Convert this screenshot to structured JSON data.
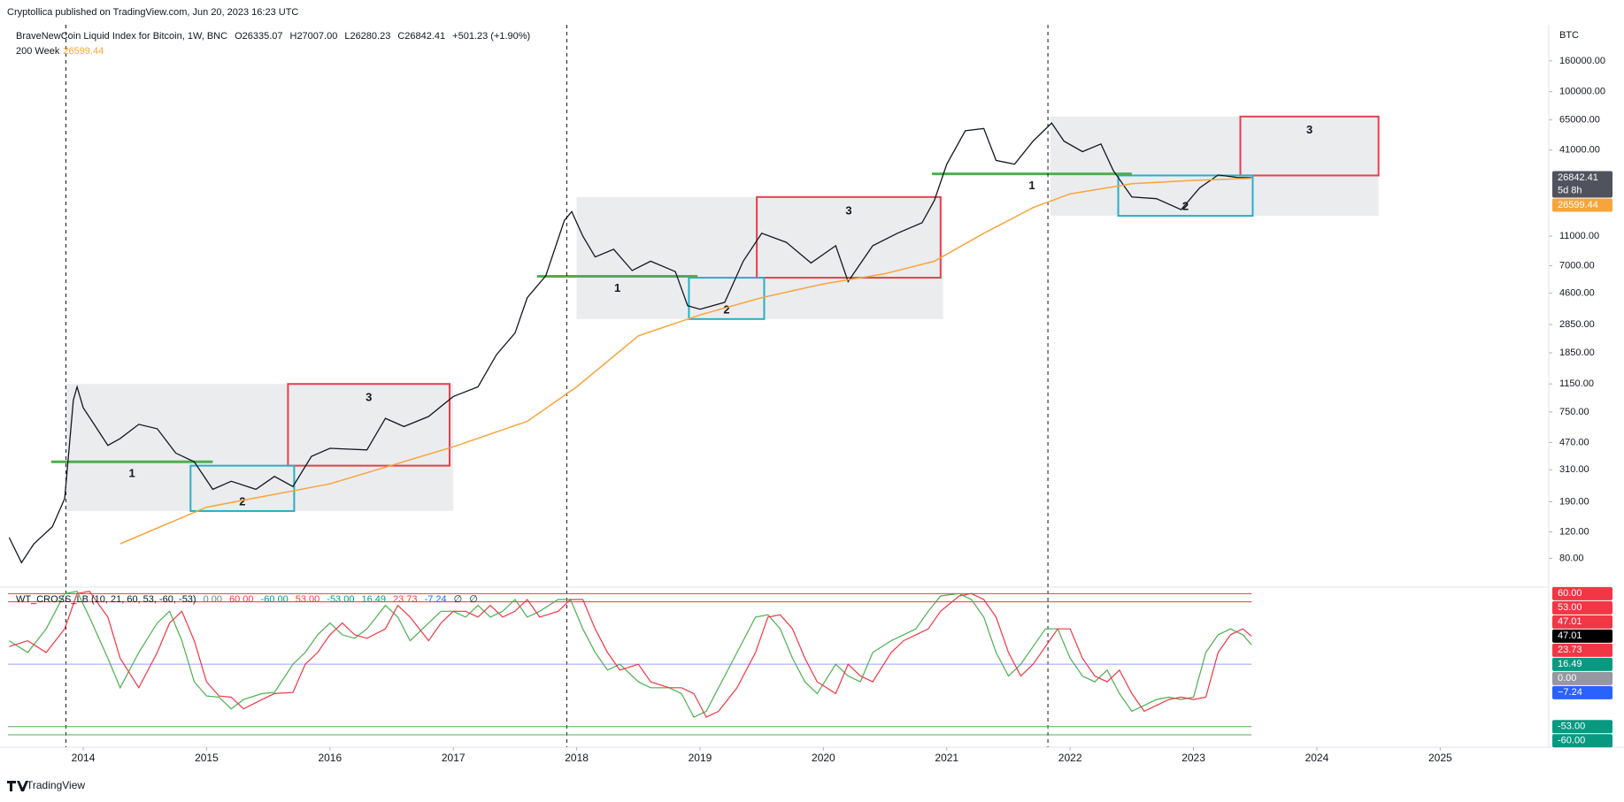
{
  "header": {
    "publisher": "Cryptollica published on TradingView.com, Jun 20, 2023 16:23 UTC",
    "footer": "TradingView"
  },
  "chart_data": [
    {
      "type": "line",
      "log_scale": true,
      "title": "BraveNewCoin Liquid Index for Bitcoin, 1W, BNC",
      "ohlc": [
        "O26335.07",
        "H27007.00",
        "L26280.23",
        "C26842.41",
        "+501.23 (+1.90%)"
      ],
      "currency": "BTC",
      "xlim": [
        2013.39,
        2025.88
      ],
      "xticks": [
        2014,
        2015,
        2016,
        2017,
        2018,
        2019,
        2020,
        2021,
        2022,
        2023,
        2024,
        2025
      ],
      "ylim": [
        53,
        278000
      ],
      "yticks": [
        {
          "value": 160000,
          "label": "160000.00"
        },
        {
          "value": 100000,
          "label": "100000.00"
        },
        {
          "value": 65000,
          "label": "65000.00"
        },
        {
          "value": 41000,
          "label": "41000.00"
        },
        {
          "value": 11000,
          "label": "11000.00"
        },
        {
          "value": 7000,
          "label": "7000.00"
        },
        {
          "value": 4600,
          "label": "4600.00"
        },
        {
          "value": 2850,
          "label": "2850.00"
        },
        {
          "value": 1850,
          "label": "1850.00"
        },
        {
          "value": 1150,
          "label": "1150.00"
        },
        {
          "value": 750,
          "label": "750.00"
        },
        {
          "value": 470,
          "label": "470.00"
        },
        {
          "value": 310,
          "label": "310.00"
        },
        {
          "value": 190,
          "label": "190.00"
        },
        {
          "value": 120,
          "label": "120.00"
        },
        {
          "value": 80,
          "label": "80.00"
        }
      ],
      "price": {
        "color": "#131722",
        "x": [
          2013.4,
          2013.5,
          2013.6,
          2013.75,
          2013.85,
          2013.92,
          2013.95,
          2014.0,
          2014.1,
          2014.2,
          2014.3,
          2014.45,
          2014.6,
          2014.75,
          2014.9,
          2015.05,
          2015.2,
          2015.4,
          2015.55,
          2015.7,
          2015.85,
          2016.0,
          2016.3,
          2016.45,
          2016.6,
          2016.8,
          2017.0,
          2017.2,
          2017.35,
          2017.5,
          2017.6,
          2017.75,
          2017.9,
          2017.96,
          2018.05,
          2018.15,
          2018.3,
          2018.45,
          2018.6,
          2018.8,
          2018.9,
          2019.0,
          2019.2,
          2019.35,
          2019.5,
          2019.7,
          2019.9,
          2020.1,
          2020.2,
          2020.4,
          2020.6,
          2020.8,
          2020.9,
          2021.0,
          2021.15,
          2021.3,
          2021.4,
          2021.55,
          2021.7,
          2021.85,
          2021.95,
          2022.1,
          2022.25,
          2022.35,
          2022.5,
          2022.7,
          2022.9,
          2023.05,
          2023.2,
          2023.35,
          2023.47
        ],
        "values": [
          110,
          75,
          100,
          130,
          200,
          900,
          1100,
          800,
          600,
          450,
          500,
          620,
          580,
          400,
          350,
          230,
          260,
          230,
          280,
          240,
          380,
          430,
          420,
          680,
          600,
          700,
          950,
          1100,
          1800,
          2500,
          4300,
          6000,
          14000,
          16000,
          11000,
          8000,
          9000,
          6500,
          7500,
          6400,
          3800,
          3600,
          4000,
          7500,
          11500,
          10000,
          7300,
          9500,
          5500,
          9500,
          11500,
          13500,
          19000,
          33000,
          55000,
          57000,
          35000,
          33000,
          47000,
          62000,
          47000,
          40000,
          45000,
          30000,
          20000,
          19500,
          16500,
          23000,
          28000,
          27000,
          26842.41
        ]
      },
      "series": [
        {
          "name": "200 Week",
          "legend_value": "26599.44",
          "color": "#f7a53b",
          "x": [
            2014.3,
            2015.0,
            2016.0,
            2017.0,
            2017.6,
            2018.0,
            2018.5,
            2019.0,
            2019.5,
            2020.0,
            2020.5,
            2020.9,
            2021.3,
            2021.7,
            2022.0,
            2022.5,
            2023.0,
            2023.47
          ],
          "values": [
            100,
            175,
            250,
            440,
            650,
            1100,
            2400,
            3300,
            4300,
            5300,
            6200,
            7500,
            11500,
            17000,
            21000,
            24500,
            25800,
            26599.44
          ]
        }
      ],
      "price_labels": [
        {
          "value": 26842.41,
          "label": "26842.41",
          "sub": "5d 8h",
          "color": "#50535e"
        },
        {
          "value": 26599.44,
          "label": "26599.44",
          "color": "#f7a53b"
        }
      ],
      "zones": [
        {
          "kind": "range",
          "x": [
            2013.86,
            2017.0
          ],
          "y": [
            165,
            1150
          ],
          "color": "#ebecee"
        },
        {
          "kind": "target",
          "x": [
            2015.66,
            2016.97
          ],
          "y": [
            330,
            1150
          ],
          "color": "#e5404f",
          "label": "3"
        },
        {
          "kind": "dip",
          "x": [
            2014.87,
            2015.71
          ],
          "y": [
            165,
            330
          ],
          "color": "#26b0c6",
          "label": "2"
        },
        {
          "kind": "level",
          "x": [
            2013.74,
            2015.05
          ],
          "y": [
            350,
            350
          ],
          "color": "#4caf50",
          "label": "1"
        },
        {
          "kind": "range",
          "x": [
            2018.0,
            2020.97
          ],
          "y": [
            3100,
            20000
          ],
          "color": "#ebecee"
        },
        {
          "kind": "target",
          "x": [
            2019.46,
            2020.95
          ],
          "y": [
            5830,
            20000
          ],
          "color": "#e5404f",
          "label": "3"
        },
        {
          "kind": "dip",
          "x": [
            2018.91,
            2019.52
          ],
          "y": [
            3100,
            5830
          ],
          "color": "#26b0c6",
          "label": "2"
        },
        {
          "kind": "level",
          "x": [
            2017.68,
            2018.98
          ],
          "y": [
            5950,
            5950
          ],
          "color": "#4caf50",
          "label": "1"
        },
        {
          "kind": "range",
          "x": [
            2021.84,
            2024.5
          ],
          "y": [
            15000,
            68400
          ],
          "color": "#ebecee"
        },
        {
          "kind": "target",
          "x": [
            2023.38,
            2024.5
          ],
          "y": [
            27800,
            68400
          ],
          "color": "#e5404f",
          "label": "3"
        },
        {
          "kind": "dip",
          "x": [
            2022.39,
            2023.48
          ],
          "y": [
            15000,
            27800
          ],
          "color": "#26b0c6",
          "label": "2"
        },
        {
          "kind": "level",
          "x": [
            2020.88,
            2022.5
          ],
          "y": [
            28500,
            28500
          ],
          "color": "#4caf50",
          "label": "1"
        }
      ],
      "vlines": [
        2013.86,
        2017.92,
        2021.82
      ]
    },
    {
      "type": "line",
      "title": "WT_CROSS_LB (10, 21, 60, 53, -60, -53)",
      "legend_values": [
        {
          "label": "0.00",
          "color": "#787b86"
        },
        {
          "label": "60.00",
          "color": "#f23645"
        },
        {
          "label": "-60.00",
          "color": "#089981"
        },
        {
          "label": "53.00",
          "color": "#f23645"
        },
        {
          "label": "-53.00",
          "color": "#089981"
        },
        {
          "label": "16.49",
          "color": "#089981"
        },
        {
          "label": "23.73",
          "color": "#f23645"
        },
        {
          "label": "-7.24",
          "color": "#2962ff"
        },
        {
          "label": "∅",
          "color": "#131722"
        },
        {
          "label": "∅",
          "color": "#131722"
        }
      ],
      "xlim": [
        2013.39,
        2025.88
      ],
      "ylim": [
        -69,
        64
      ],
      "levels": [
        {
          "value": 60,
          "color": "#f23645"
        },
        {
          "value": 53,
          "color": "#f23645"
        },
        {
          "value": 0,
          "color": "#9aa0ff"
        },
        {
          "value": -53,
          "color": "#4caf50"
        },
        {
          "value": -60,
          "color": "#4caf50"
        }
      ],
      "x": [
        2013.4,
        2013.55,
        2013.7,
        2013.85,
        2013.95,
        2014.05,
        2014.2,
        2014.3,
        2014.45,
        2014.6,
        2014.7,
        2014.8,
        2014.9,
        2015.0,
        2015.1,
        2015.2,
        2015.3,
        2015.45,
        2015.55,
        2015.7,
        2015.8,
        2015.9,
        2016.0,
        2016.1,
        2016.2,
        2016.3,
        2016.45,
        2016.55,
        2016.65,
        2016.8,
        2016.9,
        2017.0,
        2017.1,
        2017.2,
        2017.3,
        2017.4,
        2017.5,
        2017.6,
        2017.7,
        2017.85,
        2017.95,
        2018.05,
        2018.15,
        2018.25,
        2018.35,
        2018.5,
        2018.6,
        2018.75,
        2018.85,
        2018.95,
        2019.05,
        2019.15,
        2019.3,
        2019.45,
        2019.55,
        2019.65,
        2019.75,
        2019.85,
        2019.95,
        2020.1,
        2020.2,
        2020.3,
        2020.4,
        2020.55,
        2020.65,
        2020.75,
        2020.85,
        2020.95,
        2021.1,
        2021.2,
        2021.3,
        2021.4,
        2021.5,
        2021.6,
        2021.7,
        2021.8,
        2021.9,
        2022.0,
        2022.1,
        2022.2,
        2022.3,
        2022.4,
        2022.5,
        2022.6,
        2022.7,
        2022.8,
        2022.9,
        2023.0,
        2023.1,
        2023.2,
        2023.3,
        2023.4,
        2023.47
      ],
      "series": [
        {
          "color": "#4caf50",
          "values": [
            20,
            10,
            30,
            60,
            62,
            40,
            5,
            -20,
            10,
            35,
            45,
            20,
            -15,
            -27,
            -28,
            -38,
            -30,
            -25,
            -24,
            0,
            10,
            25,
            35,
            25,
            22,
            30,
            50,
            40,
            20,
            35,
            45,
            45,
            40,
            50,
            40,
            45,
            55,
            40,
            45,
            55,
            55,
            30,
            10,
            -5,
            0,
            -15,
            -20,
            -20,
            -25,
            -45,
            -40,
            -20,
            10,
            40,
            42,
            30,
            5,
            -15,
            -25,
            0,
            -10,
            -15,
            10,
            20,
            25,
            30,
            45,
            58,
            60,
            55,
            40,
            10,
            -10,
            0,
            15,
            30,
            30,
            5,
            -10,
            -15,
            -5,
            -25,
            -40,
            -35,
            -30,
            -28,
            -30,
            -28,
            10,
            25,
            30,
            25,
            16.49
          ]
        },
        {
          "color": "#f23645",
          "values": [
            15,
            20,
            10,
            30,
            60,
            62,
            40,
            5,
            -20,
            10,
            35,
            45,
            20,
            -15,
            -27,
            -28,
            -38,
            -30,
            -25,
            -24,
            0,
            10,
            25,
            35,
            25,
            22,
            30,
            50,
            40,
            20,
            35,
            45,
            45,
            40,
            50,
            40,
            45,
            55,
            40,
            45,
            55,
            55,
            30,
            10,
            -5,
            0,
            -15,
            -20,
            -20,
            -25,
            -45,
            -40,
            -20,
            10,
            40,
            42,
            30,
            5,
            -15,
            -25,
            0,
            -10,
            -15,
            10,
            20,
            25,
            30,
            45,
            58,
            60,
            55,
            40,
            10,
            -10,
            0,
            15,
            30,
            30,
            5,
            -10,
            -15,
            -5,
            -25,
            -40,
            -35,
            -30,
            -28,
            -30,
            -28,
            10,
            25,
            30,
            23.73
          ]
        }
      ],
      "price_labels": [
        {
          "value": 60,
          "label": "60.00",
          "color": "#f23645"
        },
        {
          "value": 53,
          "label": "53.00",
          "color": "#f23645"
        },
        {
          "value": 47.01,
          "label": "47.01",
          "color": "#f23645"
        },
        {
          "value": 47.01,
          "label": "47.01",
          "color": "#000000"
        },
        {
          "value": 23.73,
          "label": "23.73",
          "color": "#f23645"
        },
        {
          "value": 16.49,
          "label": "16.49",
          "color": "#089981"
        },
        {
          "value": 0,
          "label": "0.00",
          "color": "#9598a1"
        },
        {
          "value": -7.24,
          "label": "−7.24",
          "color": "#2962ff"
        },
        {
          "value": -53,
          "label": "-53.00",
          "color": "#089981"
        },
        {
          "value": -60,
          "label": "-60.00",
          "color": "#089981"
        }
      ]
    }
  ]
}
